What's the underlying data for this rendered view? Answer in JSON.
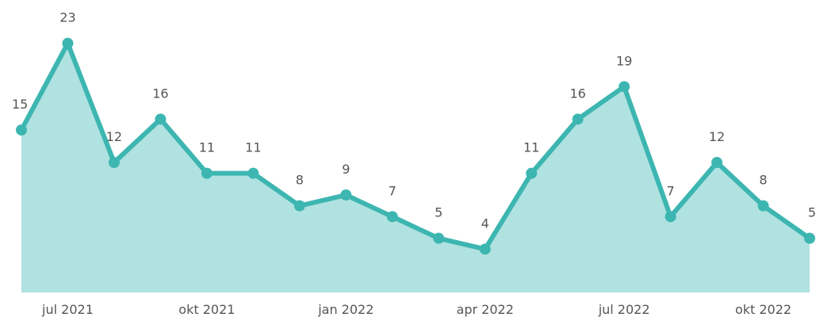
{
  "chart_data": {
    "type": "area",
    "x": [
      "2021-06",
      "2021-07",
      "2021-08",
      "2021-09",
      "2021-10",
      "2021-11",
      "2021-12",
      "2022-01",
      "2022-02",
      "2022-03",
      "2022-04",
      "2022-05",
      "2022-06",
      "2022-07",
      "2022-08",
      "2022-09",
      "2022-10",
      "2022-11"
    ],
    "series": [
      {
        "color": "#3db6b1",
        "fill": "#b0e2e1",
        "values": [
          15,
          23,
          12,
          16,
          11,
          11,
          8,
          9,
          7,
          5,
          4,
          11,
          16,
          19,
          7,
          12,
          8,
          5
        ]
      }
    ],
    "ylim": [
      0,
      27
    ],
    "xticks": [
      {
        "value": "2021-07",
        "label": "jul 2021"
      },
      {
        "value": "2021-10",
        "label": "okt 2021"
      },
      {
        "value": "2022-01",
        "label": "jan 2022"
      },
      {
        "value": "2022-04",
        "label": "apr 2022"
      },
      {
        "value": "2022-07",
        "label": "jul 2022"
      },
      {
        "value": "2022-10",
        "label": "okt 2022"
      }
    ],
    "data_labels": true
  }
}
